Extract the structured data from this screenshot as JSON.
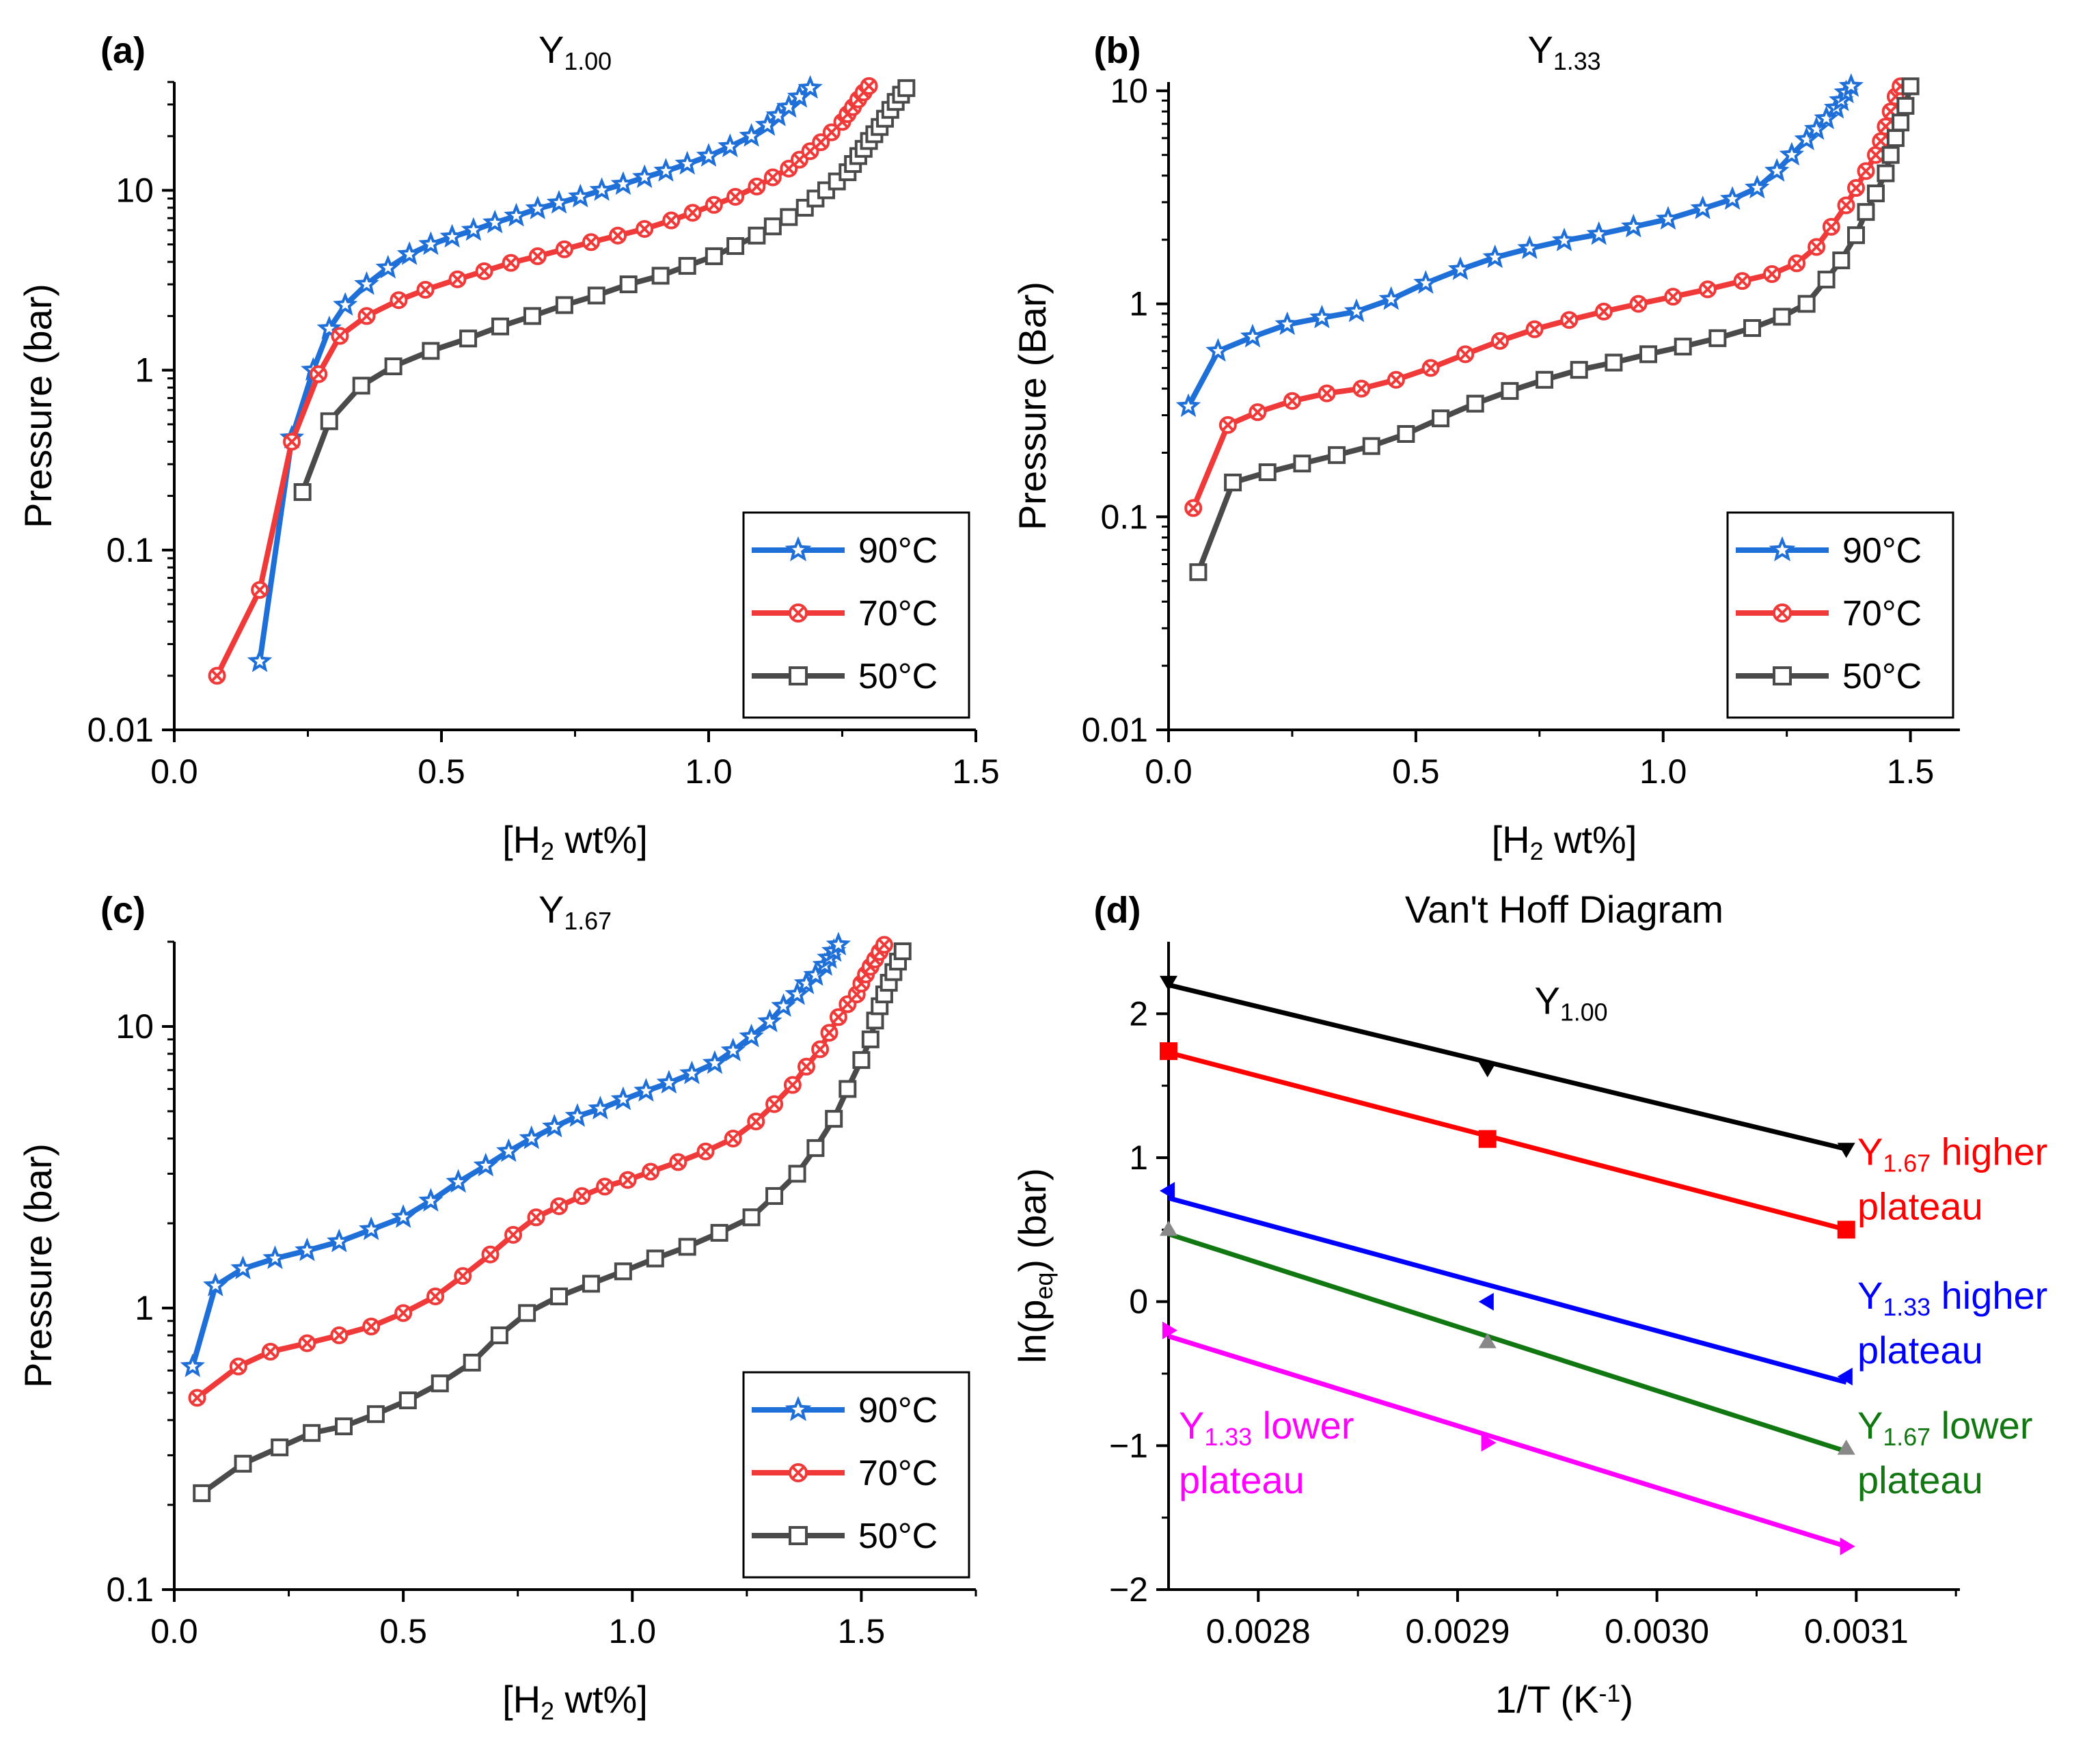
{
  "colors": {
    "c90": "#1f6fd8",
    "c70": "#f03a3a",
    "c50": "#4a4a4a",
    "vh_y100": "#000000",
    "vh_y167_high": "#ff0000",
    "vh_y133_high": "#0000ff",
    "vh_y167_low": "#117711",
    "vh_y133_low": "#ff00ff"
  },
  "chart_data": [
    {
      "id": "a",
      "type": "line",
      "panel_label": "(a)",
      "title": "Y",
      "title_sub": "1.00",
      "ylabel": "Pressure (bar)",
      "xlabel_prefix": "[H",
      "xlabel_sub": "2",
      "xlabel_suffix": " wt%]",
      "yscale": "log",
      "xlim": [
        0,
        1.5
      ],
      "ylim": [
        0.01,
        40
      ],
      "xticks": [
        0,
        0.5,
        1.0,
        1.5
      ],
      "xtick_labels": [
        "0.0",
        "0.5",
        "1.0",
        "1.5"
      ],
      "yticks": [
        0.01,
        0.1,
        1,
        10
      ],
      "ytick_labels": [
        "0.01",
        "0.1",
        "1",
        "10"
      ],
      "legend": [
        "90°C",
        "70°C",
        "50°C"
      ],
      "series": [
        {
          "name": "90°C",
          "marker": "star",
          "color": "#1f6fd8",
          "x": [
            0.16,
            0.22,
            0.26,
            0.29,
            0.32,
            0.36,
            0.4,
            0.44,
            0.48,
            0.52,
            0.56,
            0.6,
            0.64,
            0.68,
            0.72,
            0.76,
            0.8,
            0.84,
            0.88,
            0.92,
            0.96,
            1.0,
            1.04,
            1.08,
            1.11,
            1.13,
            1.15,
            1.17,
            1.19
          ],
          "y": [
            0.024,
            0.42,
            1.0,
            1.7,
            2.3,
            3.0,
            3.7,
            4.4,
            5.0,
            5.5,
            6.0,
            6.6,
            7.2,
            7.9,
            8.5,
            9.2,
            10.0,
            10.8,
            11.8,
            12.8,
            14.0,
            15.5,
            17.5,
            20.0,
            23.0,
            26.0,
            29.0,
            33.0,
            37.0
          ]
        },
        {
          "name": "70°C",
          "marker": "ocross",
          "color": "#f03a3a",
          "x": [
            0.08,
            0.16,
            0.22,
            0.27,
            0.31,
            0.36,
            0.42,
            0.47,
            0.53,
            0.58,
            0.63,
            0.68,
            0.73,
            0.78,
            0.83,
            0.88,
            0.93,
            0.97,
            1.01,
            1.05,
            1.09,
            1.12,
            1.15,
            1.17,
            1.19,
            1.21,
            1.23,
            1.25,
            1.26,
            1.27,
            1.28,
            1.29,
            1.3
          ],
          "y": [
            0.02,
            0.06,
            0.4,
            0.95,
            1.55,
            2.0,
            2.45,
            2.8,
            3.2,
            3.55,
            3.95,
            4.3,
            4.7,
            5.15,
            5.6,
            6.1,
            6.8,
            7.5,
            8.3,
            9.2,
            10.5,
            11.8,
            13.2,
            14.8,
            16.5,
            18.5,
            21.0,
            24.0,
            26.5,
            29.0,
            32.0,
            35.0,
            38.0
          ]
        },
        {
          "name": "50°C",
          "marker": "square",
          "color": "#4a4a4a",
          "x": [
            0.24,
            0.29,
            0.35,
            0.41,
            0.48,
            0.55,
            0.61,
            0.67,
            0.73,
            0.79,
            0.85,
            0.91,
            0.96,
            1.01,
            1.05,
            1.09,
            1.12,
            1.15,
            1.18,
            1.2,
            1.22,
            1.24,
            1.26,
            1.27,
            1.28,
            1.29,
            1.3,
            1.31,
            1.32,
            1.33,
            1.34,
            1.35,
            1.36,
            1.37
          ],
          "y": [
            0.21,
            0.52,
            0.82,
            1.05,
            1.28,
            1.5,
            1.75,
            2.0,
            2.3,
            2.6,
            3.0,
            3.35,
            3.8,
            4.3,
            4.9,
            5.6,
            6.3,
            7.1,
            8.0,
            9.0,
            10.0,
            11.2,
            12.6,
            14.0,
            15.5,
            17.0,
            18.8,
            20.5,
            22.5,
            25.0,
            28.0,
            31.0,
            34.0,
            37.0
          ]
        }
      ]
    },
    {
      "id": "b",
      "type": "line",
      "panel_label": "(b)",
      "title": "Y",
      "title_sub": "1.33",
      "ylabel": "Pressure (Bar)",
      "xlabel_prefix": "[H",
      "xlabel_sub": "2",
      "xlabel_suffix": " wt%]",
      "yscale": "log",
      "xlim": [
        0,
        1.6
      ],
      "ylim": [
        0.01,
        11
      ],
      "xticks": [
        0,
        0.5,
        1.0,
        1.5
      ],
      "xtick_labels": [
        "0.0",
        "0.5",
        "1.0",
        "1.5"
      ],
      "yticks": [
        0.01,
        0.1,
        1,
        10
      ],
      "ytick_labels": [
        "0.01",
        "0.1",
        "1",
        "10"
      ],
      "legend": [
        "90°C",
        "70°C",
        "50°C"
      ],
      "series": [
        {
          "name": "90°C",
          "marker": "star",
          "color": "#1f6fd8",
          "x": [
            0.04,
            0.1,
            0.17,
            0.24,
            0.31,
            0.38,
            0.45,
            0.52,
            0.59,
            0.66,
            0.73,
            0.8,
            0.87,
            0.94,
            1.01,
            1.08,
            1.14,
            1.19,
            1.23,
            1.26,
            1.29,
            1.31,
            1.33,
            1.35,
            1.36,
            1.37,
            1.38
          ],
          "y": [
            0.33,
            0.6,
            0.7,
            0.8,
            0.86,
            0.92,
            1.05,
            1.25,
            1.45,
            1.65,
            1.82,
            1.98,
            2.12,
            2.3,
            2.5,
            2.8,
            3.1,
            3.5,
            4.2,
            5.0,
            5.9,
            6.6,
            7.4,
            8.3,
            9.0,
            9.8,
            10.5
          ]
        },
        {
          "name": "70°C",
          "marker": "ocross",
          "color": "#f03a3a",
          "x": [
            0.05,
            0.12,
            0.18,
            0.25,
            0.32,
            0.39,
            0.46,
            0.53,
            0.6,
            0.67,
            0.74,
            0.81,
            0.88,
            0.95,
            1.02,
            1.09,
            1.16,
            1.22,
            1.27,
            1.31,
            1.34,
            1.37,
            1.39,
            1.41,
            1.43,
            1.44,
            1.45,
            1.46,
            1.47,
            1.48
          ],
          "y": [
            0.11,
            0.27,
            0.31,
            0.35,
            0.38,
            0.4,
            0.44,
            0.5,
            0.58,
            0.67,
            0.76,
            0.84,
            0.92,
            1.0,
            1.08,
            1.17,
            1.28,
            1.38,
            1.55,
            1.85,
            2.3,
            2.9,
            3.5,
            4.2,
            5.0,
            5.8,
            6.8,
            8.0,
            9.4,
            10.5
          ]
        },
        {
          "name": "50°C",
          "marker": "square",
          "color": "#4a4a4a",
          "x": [
            0.06,
            0.13,
            0.2,
            0.27,
            0.34,
            0.41,
            0.48,
            0.55,
            0.62,
            0.69,
            0.76,
            0.83,
            0.9,
            0.97,
            1.04,
            1.11,
            1.18,
            1.24,
            1.29,
            1.33,
            1.36,
            1.39,
            1.41,
            1.43,
            1.45,
            1.46,
            1.47,
            1.48,
            1.49,
            1.5
          ],
          "y": [
            0.055,
            0.145,
            0.162,
            0.178,
            0.195,
            0.215,
            0.245,
            0.29,
            0.34,
            0.39,
            0.44,
            0.49,
            0.53,
            0.58,
            0.63,
            0.69,
            0.77,
            0.87,
            1.0,
            1.3,
            1.6,
            2.1,
            2.7,
            3.3,
            4.1,
            5.0,
            6.0,
            7.1,
            8.5,
            10.5
          ]
        }
      ]
    },
    {
      "id": "c",
      "type": "line",
      "panel_label": "(c)",
      "title": "Y",
      "title_sub": "1.67",
      "ylabel": "Pressure (bar)",
      "xlabel_prefix": "[H",
      "xlabel_sub": "2",
      "xlabel_suffix": " wt%]",
      "yscale": "log",
      "xlim": [
        0,
        1.75
      ],
      "ylim": [
        0.1,
        20
      ],
      "xticks": [
        0,
        0.5,
        1.0,
        1.5
      ],
      "xtick_labels": [
        "0.0",
        "0.5",
        "1.0",
        "1.5"
      ],
      "yticks": [
        0.1,
        1,
        10
      ],
      "ytick_labels": [
        "0.1",
        "1",
        "10"
      ],
      "legend": [
        "90°C",
        "70°C",
        "50°C"
      ],
      "series": [
        {
          "name": "90°C",
          "marker": "star",
          "color": "#1f6fd8",
          "x": [
            0.04,
            0.09,
            0.15,
            0.22,
            0.29,
            0.36,
            0.43,
            0.5,
            0.56,
            0.62,
            0.68,
            0.73,
            0.78,
            0.83,
            0.88,
            0.93,
            0.98,
            1.03,
            1.08,
            1.13,
            1.18,
            1.22,
            1.26,
            1.3,
            1.33,
            1.36,
            1.38,
            1.4,
            1.42,
            1.43,
            1.44,
            1.45
          ],
          "y": [
            0.62,
            1.2,
            1.38,
            1.5,
            1.6,
            1.72,
            1.9,
            2.1,
            2.4,
            2.8,
            3.2,
            3.6,
            4.0,
            4.4,
            4.8,
            5.1,
            5.5,
            5.9,
            6.3,
            6.8,
            7.4,
            8.2,
            9.2,
            10.4,
            11.8,
            13.0,
            14.2,
            15.2,
            16.5,
            17.5,
            18.5,
            19.5
          ]
        },
        {
          "name": "70°C",
          "marker": "ocross",
          "color": "#f03a3a",
          "x": [
            0.05,
            0.14,
            0.21,
            0.29,
            0.36,
            0.43,
            0.5,
            0.57,
            0.63,
            0.69,
            0.74,
            0.79,
            0.84,
            0.89,
            0.94,
            0.99,
            1.04,
            1.1,
            1.16,
            1.22,
            1.27,
            1.31,
            1.35,
            1.38,
            1.41,
            1.43,
            1.45,
            1.47,
            1.49,
            1.5,
            1.51,
            1.52,
            1.53,
            1.54,
            1.55
          ],
          "y": [
            0.48,
            0.62,
            0.7,
            0.75,
            0.8,
            0.86,
            0.96,
            1.1,
            1.3,
            1.55,
            1.82,
            2.1,
            2.3,
            2.5,
            2.7,
            2.85,
            3.05,
            3.3,
            3.6,
            4.0,
            4.6,
            5.3,
            6.2,
            7.2,
            8.3,
            9.5,
            10.8,
            12.0,
            13.0,
            14.2,
            15.3,
            16.3,
            17.3,
            18.4,
            19.5
          ]
        },
        {
          "name": "50°C",
          "marker": "square",
          "color": "#4a4a4a",
          "x": [
            0.06,
            0.15,
            0.23,
            0.3,
            0.37,
            0.44,
            0.51,
            0.58,
            0.65,
            0.71,
            0.77,
            0.84,
            0.91,
            0.98,
            1.05,
            1.12,
            1.19,
            1.26,
            1.31,
            1.36,
            1.4,
            1.44,
            1.47,
            1.5,
            1.52,
            1.53,
            1.54,
            1.55,
            1.56,
            1.57,
            1.58,
            1.59
          ],
          "y": [
            0.22,
            0.28,
            0.32,
            0.36,
            0.38,
            0.42,
            0.47,
            0.54,
            0.64,
            0.8,
            0.96,
            1.1,
            1.22,
            1.35,
            1.5,
            1.65,
            1.85,
            2.1,
            2.5,
            3.0,
            3.7,
            4.7,
            6.0,
            7.6,
            9.0,
            10.5,
            11.8,
            13.0,
            14.3,
            15.6,
            17.0,
            18.5
          ]
        }
      ]
    },
    {
      "id": "d",
      "type": "scatter",
      "panel_label": "(d)",
      "title": "Van't Hoff Diagram",
      "ylabel_prefix": "ln(p",
      "ylabel_sub": "eq",
      "ylabel_suffix": ") (bar)",
      "xlabel_prefix": "1/T (K",
      "xlabel_sup": "-1",
      "xlabel_suffix": ")",
      "yscale": "linear",
      "xlim": [
        0.002755,
        0.003152
      ],
      "ylim": [
        -2,
        2.5
      ],
      "xticks": [
        0.0028,
        0.0029,
        0.003,
        0.0031
      ],
      "xtick_labels": [
        "0.0028",
        "0.0029",
        "0.0030",
        "0.0031"
      ],
      "yticks": [
        -2,
        -1,
        0,
        1,
        2
      ],
      "ytick_labels": [
        "−2",
        "−1",
        "0",
        "1",
        "2"
      ],
      "x": [
        0.002755,
        0.002915,
        0.003095
      ],
      "series": [
        {
          "name": "Y1.00",
          "label": "Y",
          "label_sub": "1.00",
          "label_rest": "",
          "label_line2": "",
          "color": "#000000",
          "marker": "tri-down",
          "y": [
            2.22,
            1.62,
            1.06
          ],
          "fit": [
            2.2,
            1.06
          ]
        },
        {
          "name": "Y1.67 higher plateau",
          "label": "Y",
          "label_sub": "1.67",
          "label_rest": " higher",
          "label_line2": "plateau",
          "color": "#ff0000",
          "marker": "square",
          "y": [
            1.74,
            1.13,
            0.5
          ],
          "fit": [
            1.73,
            0.5
          ]
        },
        {
          "name": "Y1.33 higher plateau",
          "label": "Y",
          "label_sub": "1.33",
          "label_rest": " higher",
          "label_line2": "plateau",
          "color": "#0000ff",
          "marker": "tri-left",
          "y": [
            0.77,
            0.0,
            -0.52
          ],
          "fit": [
            0.72,
            -0.56
          ]
        },
        {
          "name": "Y1.67 lower plateau",
          "label": "Y",
          "label_sub": "1.67",
          "label_rest": " lower",
          "label_line2": "plateau",
          "color": "#117711",
          "marker": "tri-up",
          "y": [
            0.5,
            -0.28,
            -1.02
          ],
          "fit": [
            0.47,
            -1.04
          ]
        },
        {
          "name": "Y1.33 lower plateau",
          "label": "Y",
          "label_sub": "1.33",
          "label_rest": " lower",
          "label_line2": "plateau",
          "color": "#ff00ff",
          "marker": "tri-right",
          "y": [
            -0.2,
            -0.98,
            -1.7
          ],
          "fit": [
            -0.24,
            -1.7
          ]
        }
      ]
    }
  ]
}
